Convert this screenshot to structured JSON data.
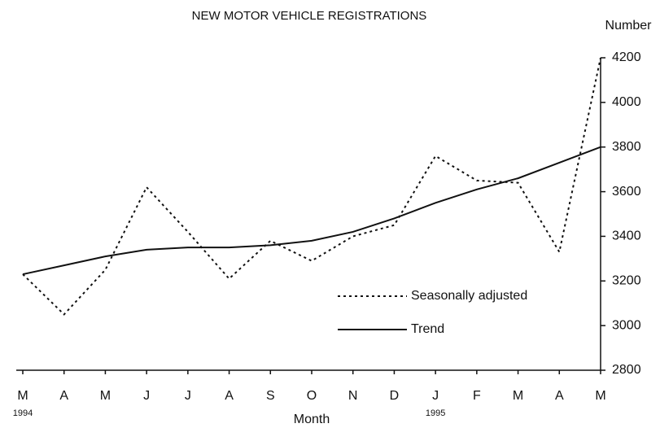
{
  "chart_data": {
    "type": "line",
    "title": "NEW MOTOR VEHICLE REGISTRATIONS",
    "y_label": "Number",
    "x_label": "Month",
    "categories": [
      "M",
      "A",
      "M",
      "J",
      "J",
      "A",
      "S",
      "O",
      "N",
      "D",
      "J",
      "F",
      "M",
      "A",
      "M"
    ],
    "x_sublabels": [
      "1994",
      null,
      null,
      null,
      null,
      null,
      null,
      null,
      null,
      null,
      "1995",
      null,
      null,
      null,
      null
    ],
    "series": [
      {
        "name": "Seasonally adjusted",
        "color": "#111111",
        "dashed": true,
        "values": [
          3230,
          3050,
          3250,
          3620,
          3420,
          3210,
          3380,
          3290,
          3400,
          3450,
          3760,
          3650,
          3640,
          3330,
          4200
        ]
      },
      {
        "name": "Trend",
        "color": "#111111",
        "dashed": false,
        "values": [
          3230,
          3270,
          3310,
          3340,
          3350,
          3350,
          3360,
          3380,
          3420,
          3480,
          3550,
          3610,
          3660,
          3730,
          3800
        ]
      }
    ],
    "ylim": [
      2800,
      4200
    ],
    "yticks": [
      2800,
      3000,
      3200,
      3400,
      3600,
      3800,
      4000,
      4200
    ],
    "y_axis_side": "right",
    "grid": false
  }
}
